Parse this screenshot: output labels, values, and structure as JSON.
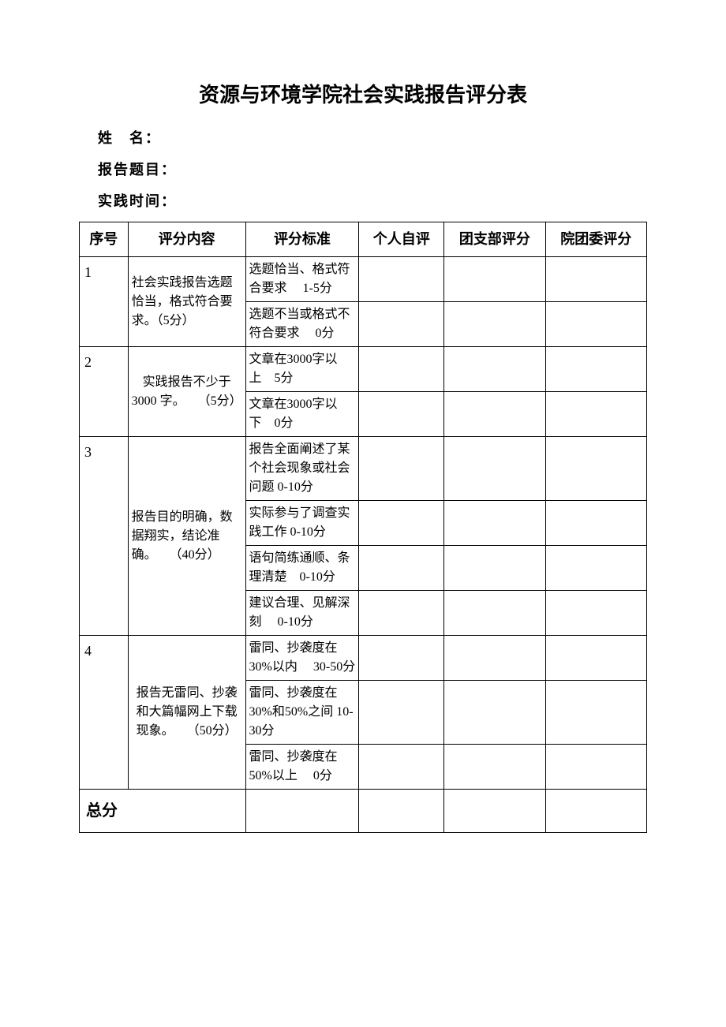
{
  "title": "资源与环境学院社会实践报告评分表",
  "info": {
    "name_label": "姓 名：",
    "topic_label": "报告题目：",
    "time_label": "实践时间："
  },
  "headers": {
    "seq": "序号",
    "content": "评分内容",
    "standard": "评分标准",
    "self": "个人自评",
    "branch": "团支部评分",
    "committee": "院团委评分"
  },
  "rows": [
    {
      "seq": "1",
      "content": "社会实践报告选题恰当，格式符合要求。（5分）",
      "standards": [
        "选题恰当、格式符合要求  1-5分",
        "选题不当或格式不符合要求  0分"
      ]
    },
    {
      "seq": "2",
      "content": "实践报告不少于 3000 字。 （5分）",
      "standards": [
        "文章在3000字以上 5分",
        "文章在3000字以下 0分"
      ]
    },
    {
      "seq": "3",
      "content": "报告目的明确，数据翔实，结论准确。 （40分）",
      "standards": [
        "报告全面阐述了某个社会现象或社会问题 0-10分",
        "实际参与了调查实践工作 0-10分",
        "语句简练通顺、条理清楚 0-10分",
        "建议合理、见解深刻  0-10分"
      ]
    },
    {
      "seq": "4",
      "content": "报告无雷同、抄袭和大篇幅网上下载现象。 （50分）",
      "standards": [
        "雷同、抄袭度在30%以内  30-50分",
        "雷同、抄袭度在30%和50%之间 10-30分",
        "雷同、抄袭度在50%以上  0分"
      ]
    }
  ],
  "total_label": "总分",
  "styles": {
    "text_color": "#000000",
    "background_color": "#ffffff",
    "border_color": "#000000",
    "title_fontsize": 26,
    "header_fontsize": 18,
    "cell_fontsize": 16,
    "info_fontsize": 18
  }
}
